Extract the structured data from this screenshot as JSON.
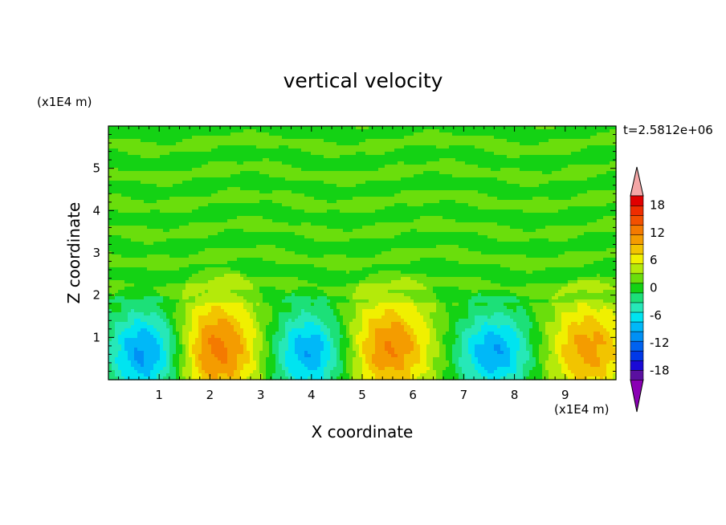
{
  "chart_data": {
    "type": "heatmap",
    "title": "vertical velocity",
    "xlabel": "X coordinate",
    "ylabel": "Z coordinate",
    "x_unit": "(x1E4 m)",
    "y_unit": "(x1E4 m)",
    "time_label": "t=2.5812e+06",
    "xlim": [
      0,
      10
    ],
    "ylim": [
      0,
      6
    ],
    "x_ticks": [
      "1",
      "2",
      "3",
      "4",
      "5",
      "6",
      "7",
      "8",
      "9"
    ],
    "y_ticks": [
      "1",
      "2",
      "3",
      "4",
      "5"
    ],
    "colorbar": {
      "ticks": [
        "18",
        "12",
        "6",
        "0",
        "-6",
        "-12",
        "-18"
      ],
      "extend": "both",
      "levels": [
        -20,
        -18,
        -16,
        -14,
        -12,
        -10,
        -8,
        -6,
        -4,
        -2,
        0,
        2,
        4,
        6,
        8,
        10,
        12,
        14,
        16,
        18,
        20
      ],
      "colors": [
        "#8a00b4",
        "#5a10a0",
        "#1a0ad6",
        "#0038e8",
        "#0062f0",
        "#0090f5",
        "#00b8f8",
        "#00e4f0",
        "#26e8b8",
        "#1ce078",
        "#14d214",
        "#6ade0c",
        "#b4ea0a",
        "#f0f000",
        "#f2c400",
        "#f49c00",
        "#f47a00",
        "#f25000",
        "#ee2d00",
        "#e00000",
        "#f4a6a6"
      ]
    },
    "cells": [
      {
        "x": 0.75,
        "z": 0.65,
        "w": -11,
        "rx": 0.75,
        "rz": 1.0
      },
      {
        "x": 2.15,
        "z": 0.72,
        "w": 11,
        "rx": 0.85,
        "rz": 1.25
      },
      {
        "x": 3.95,
        "z": 0.65,
        "w": -10,
        "rx": 0.75,
        "rz": 1.0
      },
      {
        "x": 5.55,
        "z": 0.75,
        "w": 10,
        "rx": 0.85,
        "rz": 1.2
      },
      {
        "x": 7.6,
        "z": 0.65,
        "w": -10,
        "rx": 0.75,
        "rz": 0.95
      },
      {
        "x": 9.45,
        "z": 0.72,
        "w": 9,
        "rx": 0.8,
        "rz": 1.15
      }
    ]
  }
}
